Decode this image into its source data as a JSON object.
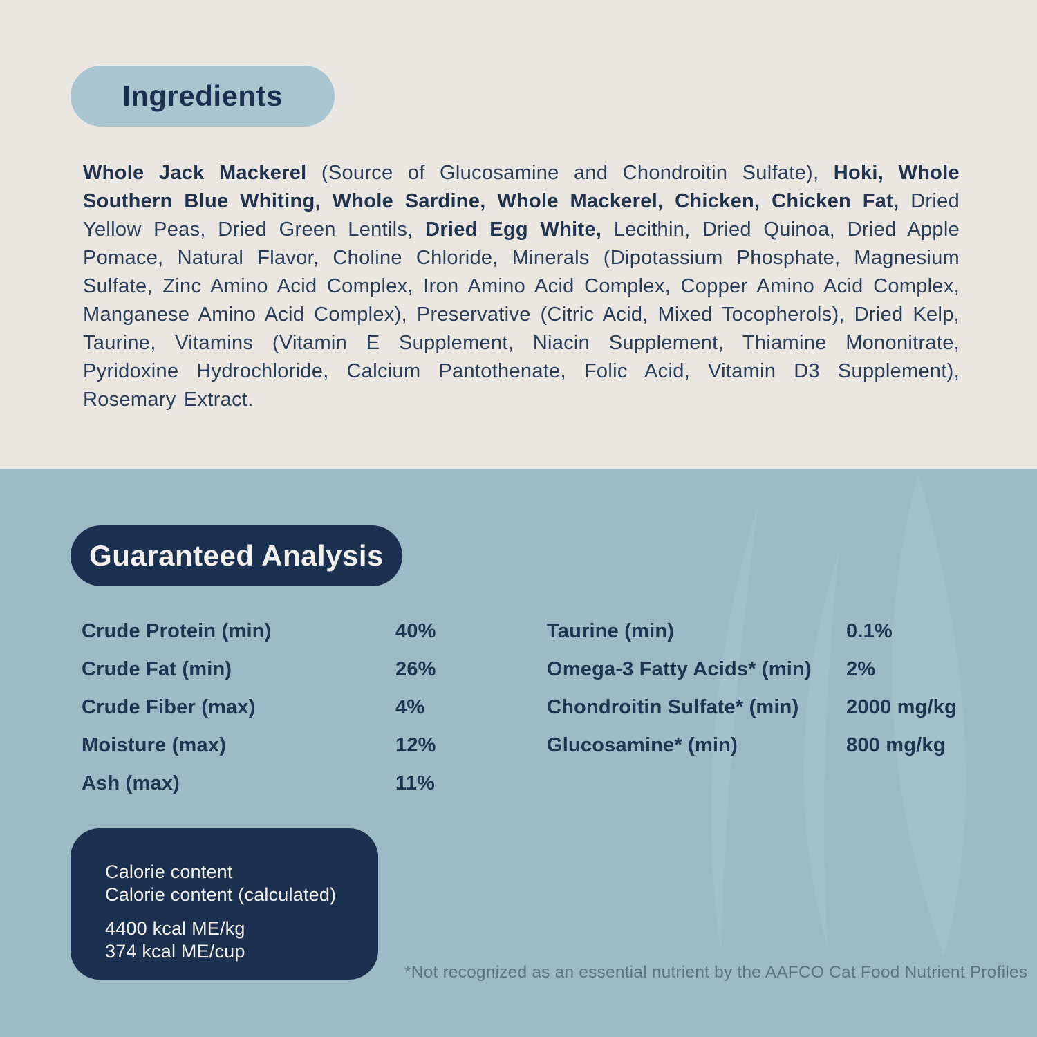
{
  "colors": {
    "cream_background": "#EAE6E1",
    "blue_background": "#9CBBC6",
    "light_pill_blue": "#A9C6D0",
    "navy": "#1C3150",
    "body_text_navy": "#2B3D56",
    "footnote_slate": "#5A7683",
    "off_white_text": "#F2F0EC"
  },
  "ingredients": {
    "title": "Ingredients",
    "segments": [
      {
        "text": "Whole Jack Mackerel",
        "bold": true
      },
      {
        "text": " (Source of Glucosamine and Chondroitin Sulfate), ",
        "bold": false
      },
      {
        "text": "Hoki, Whole Southern Blue Whiting, Whole Sardine, Whole Mackerel, Chicken, Chicken Fat,",
        "bold": true
      },
      {
        "text": " Dried Yellow Peas, Dried Green Lentils, ",
        "bold": false
      },
      {
        "text": "Dried Egg White,",
        "bold": true
      },
      {
        "text": " Lecithin, Dried Quinoa, Dried Apple Pomace, Natural Flavor, Choline Chloride, Minerals (Dipotassium Phosphate, Magnesium Sulfate, Zinc Amino Acid Complex, Iron Amino Acid Complex, Copper Amino Acid Complex, Manganese Amino Acid Complex), Preservative (Citric Acid, Mixed Tocopherols), Dried Kelp, Taurine, Vitamins (Vitamin E Supplement, Niacin Supplement, Thiamine Mononitrate, Pyridoxine Hydrochloride, Calcium Pantothenate, Folic Acid, Vitamin D3 Supplement), Rosemary Extract.",
        "bold": false
      }
    ]
  },
  "guaranteed_analysis": {
    "title": "Guaranteed Analysis",
    "left_column": [
      {
        "label": "Crude Protein (min)",
        "value": "40%"
      },
      {
        "label": "Crude Fat (min)",
        "value": "26%"
      },
      {
        "label": "Crude Fiber (max)",
        "value": "4%"
      },
      {
        "label": "Moisture (max)",
        "value": "12%"
      },
      {
        "label": "Ash (max)",
        "value": "11%"
      }
    ],
    "right_column": [
      {
        "label": "Taurine (min)",
        "value": "0.1%"
      },
      {
        "label": "Omega-3 Fatty Acids* (min)",
        "value": "2%"
      },
      {
        "label": "Chondroitin Sulfate* (min)",
        "value": "2000 mg/kg"
      },
      {
        "label": "Glucosamine* (min)",
        "value": "800 mg/kg"
      }
    ],
    "calorie_box": {
      "lines": [
        "Calorie content",
        "Calorie content (calculated)"
      ],
      "values": [
        "4400 kcal ME/kg",
        "374 kcal ME/cup"
      ]
    },
    "footnote": "*Not recognized as an essential nutrient by the AAFCO Cat Food Nutrient Profiles"
  },
  "watermark": {
    "icon": "flame-swirl-watermark"
  }
}
